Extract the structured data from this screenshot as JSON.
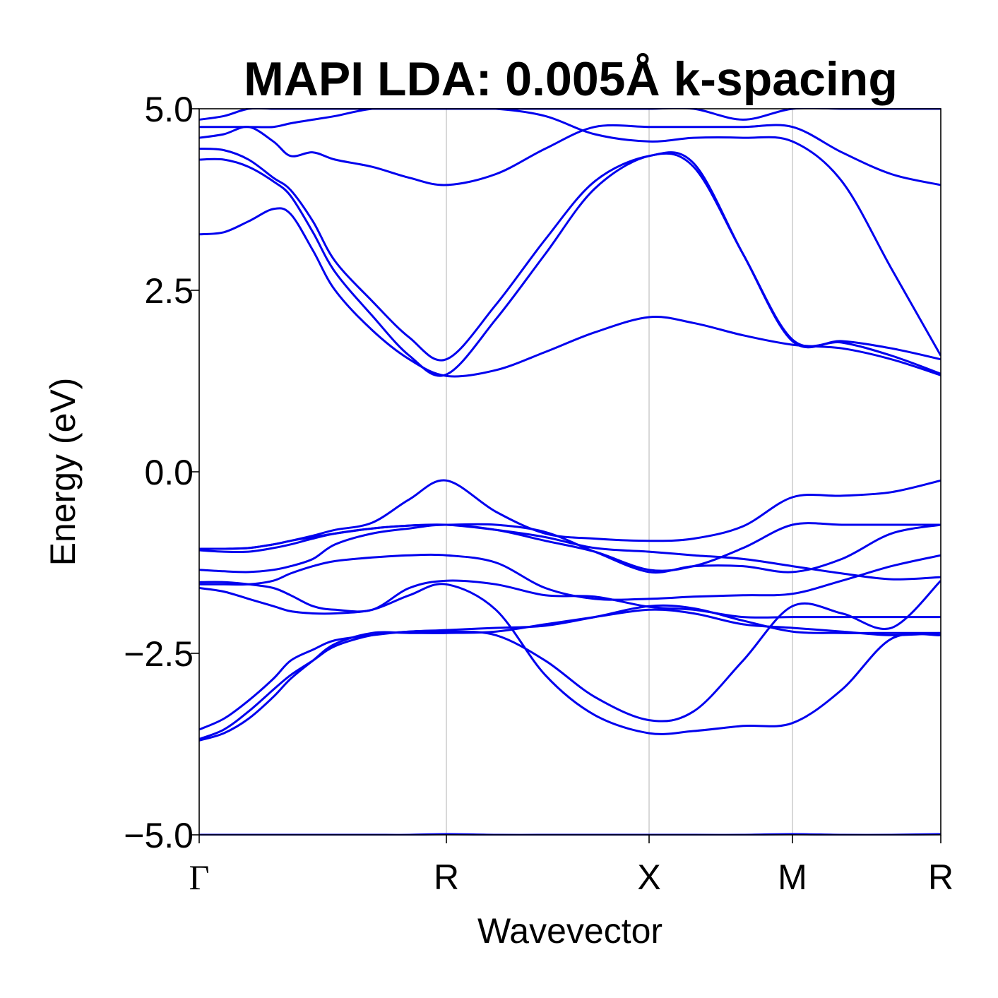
{
  "chart_data": {
    "type": "line",
    "title": "MAPI LDA: 0.005Å k-spacing",
    "xlabel": "Wavevector",
    "ylabel": "Energy (eV)",
    "ylim": [
      -5.0,
      5.0
    ],
    "yticks": [
      5.0,
      2.5,
      0.0,
      -2.5,
      -5.0
    ],
    "ytick_labels": [
      "5.0",
      "2.5",
      "0.0",
      "−2.5",
      "−5.0"
    ],
    "xlim": [
      0,
      3.0
    ],
    "kpoints": [
      {
        "label": "Γ",
        "x": 0.0
      },
      {
        "label": "R",
        "x": 1.0
      },
      {
        "label": "X",
        "x": 1.82
      },
      {
        "label": "M",
        "x": 2.4
      },
      {
        "label": "R",
        "x": 3.0
      }
    ],
    "grid": "vertical lines at high-symmetry k-points",
    "legend": "none",
    "colors": {
      "bands": "#0000ee",
      "kpoint_lines": "#cccccc",
      "axes": "#000000"
    },
    "series": [
      {
        "x": [
          0.0,
          0.1,
          0.2,
          0.3,
          0.37,
          0.46,
          0.55,
          0.7,
          0.85,
          1.0,
          1.2,
          1.4,
          1.6,
          1.82,
          2.0,
          2.2,
          2.4,
          2.6,
          2.8,
          3.0
        ],
        "y": [
          -5.0,
          -5.0,
          -5.0,
          -5.0,
          -5.0,
          -5.0,
          -5.0,
          -5.0,
          -5.0,
          -4.99,
          -5.0,
          -5.0,
          -5.0,
          -5.0,
          -5.0,
          -5.0,
          -4.99,
          -5.0,
          -5.0,
          -4.99
        ]
      },
      {
        "x": [
          0.0,
          0.1,
          0.2,
          0.3,
          0.37,
          0.46,
          0.55,
          0.7,
          0.85,
          1.0,
          1.2,
          1.4,
          1.6,
          1.82,
          2.0,
          2.2,
          2.4,
          2.6,
          2.8,
          3.0
        ],
        "y": [
          -3.7,
          -3.6,
          -3.4,
          -3.1,
          -2.85,
          -2.6,
          -2.37,
          -2.22,
          -2.22,
          -2.22,
          -2.2,
          -2.1,
          -2.0,
          -1.9,
          -1.95,
          -2.1,
          -2.15,
          -2.2,
          -2.25,
          -2.22
        ]
      },
      {
        "x": [
          0.0,
          0.1,
          0.2,
          0.3,
          0.37,
          0.46,
          0.55,
          0.7,
          0.85,
          1.0,
          1.2,
          1.4,
          1.6,
          1.82,
          2.0,
          2.2,
          2.4,
          2.6,
          2.8,
          3.0
        ],
        "y": [
          -3.68,
          -3.55,
          -3.3,
          -3.0,
          -2.8,
          -2.6,
          -2.4,
          -2.25,
          -2.2,
          -2.18,
          -2.15,
          -2.12,
          -2.0,
          -1.85,
          -1.88,
          -2.05,
          -2.2,
          -2.22,
          -2.22,
          -2.22
        ]
      },
      {
        "x": [
          0.0,
          0.1,
          0.2,
          0.3,
          0.37,
          0.46,
          0.55,
          0.7,
          0.85,
          1.0,
          1.2,
          1.4,
          1.6,
          1.82,
          2.0,
          2.2,
          2.4,
          2.6,
          2.8,
          3.0
        ],
        "y": [
          -3.55,
          -3.4,
          -3.15,
          -2.85,
          -2.6,
          -2.45,
          -2.32,
          -2.25,
          -2.2,
          -2.2,
          -2.25,
          -2.6,
          -3.1,
          -3.42,
          -3.3,
          -2.6,
          -1.85,
          -1.95,
          -2.15,
          -1.5
        ]
      },
      {
        "x": [
          0.0,
          0.1,
          0.2,
          0.3,
          0.37,
          0.46,
          0.55,
          0.7,
          0.85,
          1.0,
          1.2,
          1.4,
          1.6,
          1.82,
          2.0,
          2.2,
          2.4,
          2.6,
          2.8,
          3.0
        ],
        "y": [
          -1.6,
          -1.65,
          -1.75,
          -1.85,
          -1.92,
          -1.95,
          -1.95,
          -1.9,
          -1.7,
          -1.55,
          -1.9,
          -2.8,
          -3.35,
          -3.6,
          -3.57,
          -3.5,
          -3.46,
          -3.0,
          -2.3,
          -2.25
        ]
      },
      {
        "x": [
          0.0,
          0.1,
          0.2,
          0.3,
          0.37,
          0.46,
          0.55,
          0.7,
          0.85,
          1.0,
          1.2,
          1.4,
          1.6,
          1.82,
          2.0,
          2.2,
          2.4,
          2.6,
          2.8,
          3.0
        ],
        "y": [
          -1.55,
          -1.55,
          -1.55,
          -1.5,
          -1.4,
          -1.3,
          -1.23,
          -1.18,
          -1.15,
          -1.15,
          -1.25,
          -1.6,
          -1.75,
          -1.75,
          -1.72,
          -1.7,
          -1.68,
          -1.5,
          -1.3,
          -1.15
        ]
      },
      {
        "x": [
          0.0,
          0.1,
          0.2,
          0.3,
          0.37,
          0.46,
          0.55,
          0.7,
          0.85,
          1.0,
          1.2,
          1.4,
          1.6,
          1.82,
          2.0,
          2.2,
          2.4,
          2.6,
          2.8,
          3.0
        ],
        "y": [
          -1.52,
          -1.52,
          -1.55,
          -1.6,
          -1.7,
          -1.85,
          -1.9,
          -1.9,
          -1.6,
          -1.5,
          -1.55,
          -1.7,
          -1.72,
          -1.86,
          -1.9,
          -2.0,
          -2.0,
          -2.0,
          -2.0,
          -2.0
        ]
      },
      {
        "x": [
          0.0,
          0.1,
          0.2,
          0.3,
          0.37,
          0.46,
          0.55,
          0.7,
          0.85,
          1.0,
          1.2,
          1.4,
          1.6,
          1.82,
          2.0,
          2.2,
          2.4,
          2.6,
          2.8,
          3.0
        ],
        "y": [
          -1.35,
          -1.37,
          -1.38,
          -1.35,
          -1.3,
          -1.2,
          -1.0,
          -0.85,
          -0.78,
          -0.73,
          -0.8,
          -0.95,
          -1.1,
          -1.35,
          -1.3,
          -1.05,
          -0.73,
          -0.73,
          -0.73,
          -0.73
        ]
      },
      {
        "x": [
          0.0,
          0.1,
          0.2,
          0.3,
          0.37,
          0.46,
          0.55,
          0.7,
          0.85,
          1.0,
          1.2,
          1.4,
          1.6,
          1.82,
          2.0,
          2.2,
          2.4,
          2.6,
          2.8,
          3.0
        ],
        "y": [
          -1.08,
          -1.1,
          -1.1,
          -1.05,
          -1.0,
          -0.92,
          -0.85,
          -0.78,
          -0.74,
          -0.73,
          -0.73,
          -0.83,
          -1.1,
          -1.38,
          -1.3,
          -1.3,
          -1.38,
          -1.2,
          -0.85,
          -0.73
        ]
      },
      {
        "x": [
          0.0,
          0.1,
          0.2,
          0.3,
          0.37,
          0.46,
          0.55,
          0.7,
          0.85,
          1.0,
          1.2,
          1.4,
          1.6,
          1.82,
          2.0,
          2.2,
          2.4,
          2.6,
          2.8,
          3.0
        ],
        "y": [
          -1.06,
          -1.06,
          -1.05,
          -1.0,
          -0.95,
          -0.9,
          -0.85,
          -0.78,
          -0.74,
          -0.73,
          -0.8,
          -0.9,
          -1.05,
          -1.1,
          -1.15,
          -1.2,
          -1.3,
          -1.4,
          -1.48,
          -1.45
        ]
      },
      {
        "x": [
          0.0,
          0.1,
          0.2,
          0.3,
          0.37,
          0.46,
          0.55,
          0.7,
          0.85,
          1.0,
          1.2,
          1.4,
          1.6,
          1.82,
          2.0,
          2.2,
          2.4,
          2.6,
          2.8,
          3.0
        ],
        "y": [
          -1.06,
          -1.06,
          -1.05,
          -1.0,
          -0.95,
          -0.88,
          -0.8,
          -0.7,
          -0.38,
          -0.12,
          -0.55,
          -0.85,
          -0.92,
          -0.95,
          -0.92,
          -0.75,
          -0.35,
          -0.33,
          -0.28,
          -0.12
        ]
      },
      {
        "x": [
          0.0,
          0.1,
          0.2,
          0.3,
          0.37,
          0.46,
          0.55,
          0.7,
          0.85,
          1.0,
          1.2,
          1.4,
          1.6,
          1.82,
          2.0,
          2.2,
          2.4,
          2.6,
          2.8,
          3.0
        ],
        "y": [
          3.27,
          3.3,
          3.45,
          3.62,
          3.55,
          3.05,
          2.5,
          1.95,
          1.55,
          1.32,
          1.4,
          1.65,
          1.92,
          2.13,
          2.05,
          1.88,
          1.75,
          1.7,
          1.55,
          1.33
        ]
      },
      {
        "x": [
          0.0,
          0.1,
          0.2,
          0.3,
          0.37,
          0.46,
          0.55,
          0.7,
          0.85,
          1.0,
          1.2,
          1.4,
          1.6,
          1.82,
          2.0,
          2.2,
          2.4,
          2.6,
          2.8,
          3.0
        ],
        "y": [
          4.3,
          4.3,
          4.2,
          4.0,
          3.8,
          3.3,
          2.75,
          2.15,
          1.6,
          1.34,
          2.1,
          3.0,
          3.9,
          4.35,
          4.2,
          3.0,
          1.82,
          1.78,
          1.6,
          1.35
        ]
      },
      {
        "x": [
          0.0,
          0.1,
          0.2,
          0.3,
          0.37,
          0.46,
          0.55,
          0.7,
          0.85,
          1.0,
          1.2,
          1.4,
          1.6,
          1.82,
          2.0,
          2.2,
          2.4,
          2.6,
          2.8,
          3.0
        ],
        "y": [
          4.45,
          4.43,
          4.3,
          4.05,
          3.88,
          3.45,
          2.9,
          2.35,
          1.85,
          1.55,
          2.3,
          3.2,
          4.0,
          4.35,
          4.25,
          3.0,
          1.8,
          1.8,
          1.7,
          1.55
        ]
      },
      {
        "x": [
          0.0,
          0.1,
          0.2,
          0.3,
          0.37,
          0.46,
          0.55,
          0.7,
          0.85,
          1.0,
          1.2,
          1.4,
          1.6,
          1.82,
          2.0,
          2.2,
          2.4,
          2.6,
          2.8,
          3.0
        ],
        "y": [
          4.6,
          4.65,
          4.75,
          4.55,
          4.35,
          4.4,
          4.3,
          4.2,
          4.05,
          3.95,
          4.1,
          4.45,
          4.75,
          4.75,
          4.75,
          4.75,
          4.75,
          4.4,
          4.1,
          3.95
        ]
      },
      {
        "x": [
          0.0,
          0.1,
          0.2,
          0.3,
          0.37,
          0.46,
          0.55,
          0.7,
          0.85,
          1.0,
          1.2,
          1.4,
          1.6,
          1.82,
          2.0,
          2.2,
          2.4,
          2.6,
          2.8,
          3.0
        ],
        "y": [
          4.75,
          4.75,
          4.75,
          4.75,
          4.8,
          4.85,
          4.9,
          5.0,
          5.0,
          5.0,
          5.0,
          4.9,
          4.65,
          4.55,
          4.6,
          4.6,
          4.55,
          4.0,
          2.8,
          1.6
        ]
      },
      {
        "x": [
          0.0,
          0.1,
          0.2,
          0.3,
          0.37,
          0.46,
          0.55,
          0.7,
          0.85,
          1.0,
          1.2,
          1.4,
          1.6,
          1.82,
          2.0,
          2.2,
          2.4,
          2.6,
          2.8,
          3.0
        ],
        "y": [
          4.85,
          4.9,
          5.0,
          5.0,
          5.0,
          5.0,
          5.0,
          5.0,
          5.0,
          5.0,
          5.0,
          5.0,
          5.0,
          5.0,
          5.0,
          4.85,
          5.0,
          5.0,
          5.0,
          5.0
        ]
      }
    ]
  }
}
